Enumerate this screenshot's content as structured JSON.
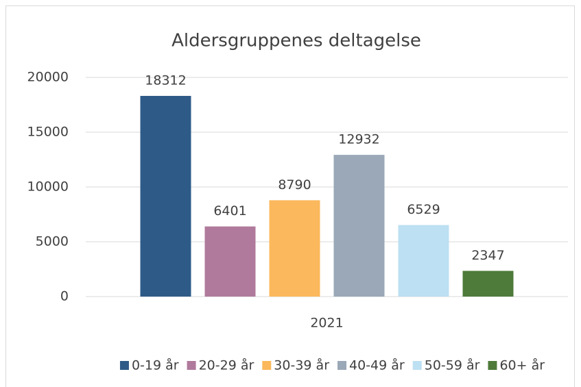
{
  "chart_data": {
    "type": "bar",
    "title": "Aldersgruppenes deltagelse",
    "categories": [
      "2021"
    ],
    "series": [
      {
        "name": "0-19 år",
        "color": "#2e5a87",
        "values": [
          18312
        ]
      },
      {
        "name": "20-29 år",
        "color": "#b07a9c",
        "values": [
          6401
        ]
      },
      {
        "name": "30-39 år",
        "color": "#fbb85c",
        "values": [
          8790
        ]
      },
      {
        "name": "40-49 år",
        "color": "#9aa8b8",
        "values": [
          12932
        ]
      },
      {
        "name": "50-59 år",
        "color": "#bde0f2",
        "values": [
          6529
        ]
      },
      {
        "name": "60+ år",
        "color": "#4e7a3a",
        "values": [
          2347
        ]
      }
    ],
    "ylim": [
      0,
      20000
    ],
    "yticks": [
      0,
      5000,
      10000,
      15000,
      20000
    ],
    "grid": true,
    "legend": "bottom"
  }
}
